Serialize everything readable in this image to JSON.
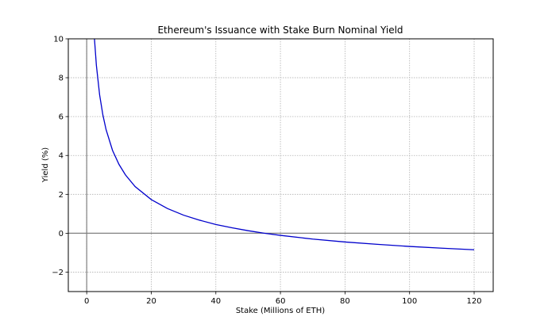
{
  "chart_data": {
    "type": "line",
    "title": "Ethereum's Issuance with Stake Burn Nominal Yield",
    "xlabel": "Stake (Millions of ETH)",
    "ylabel": "Yield (%)",
    "xlim": [
      -5.7,
      125.9
    ],
    "ylim": [
      -3,
      10
    ],
    "xticks": [
      0,
      20,
      40,
      60,
      80,
      100,
      120
    ],
    "yticks": [
      -2,
      0,
      2,
      4,
      6,
      8,
      10
    ],
    "xtick_labels": [
      "0",
      "20",
      "40",
      "60",
      "80",
      "100",
      "120"
    ],
    "ytick_labels": [
      "−2",
      "0",
      "2",
      "4",
      "6",
      "8",
      "10"
    ],
    "grid": true,
    "legend": null,
    "reference_lines": [
      {
        "orientation": "horizontal",
        "value": 0,
        "color": "#808080"
      },
      {
        "orientation": "vertical",
        "value": 0,
        "color": "#808080"
      }
    ],
    "series": [
      {
        "name": "Nominal Yield",
        "color": "#0000cc",
        "x": [
          2.3,
          3,
          4,
          5,
          6,
          8,
          10,
          12,
          15,
          20,
          25,
          30,
          35,
          40,
          45,
          50,
          55,
          60,
          70,
          80,
          90,
          100,
          110,
          120
        ],
        "y": [
          10.23,
          8.63,
          7.12,
          6.09,
          5.33,
          4.26,
          3.54,
          3.0,
          2.4,
          1.73,
          1.27,
          0.93,
          0.67,
          0.45,
          0.28,
          0.13,
          0.0,
          -0.11,
          -0.3,
          -0.45,
          -0.57,
          -0.68,
          -0.77,
          -0.85
        ]
      }
    ]
  }
}
